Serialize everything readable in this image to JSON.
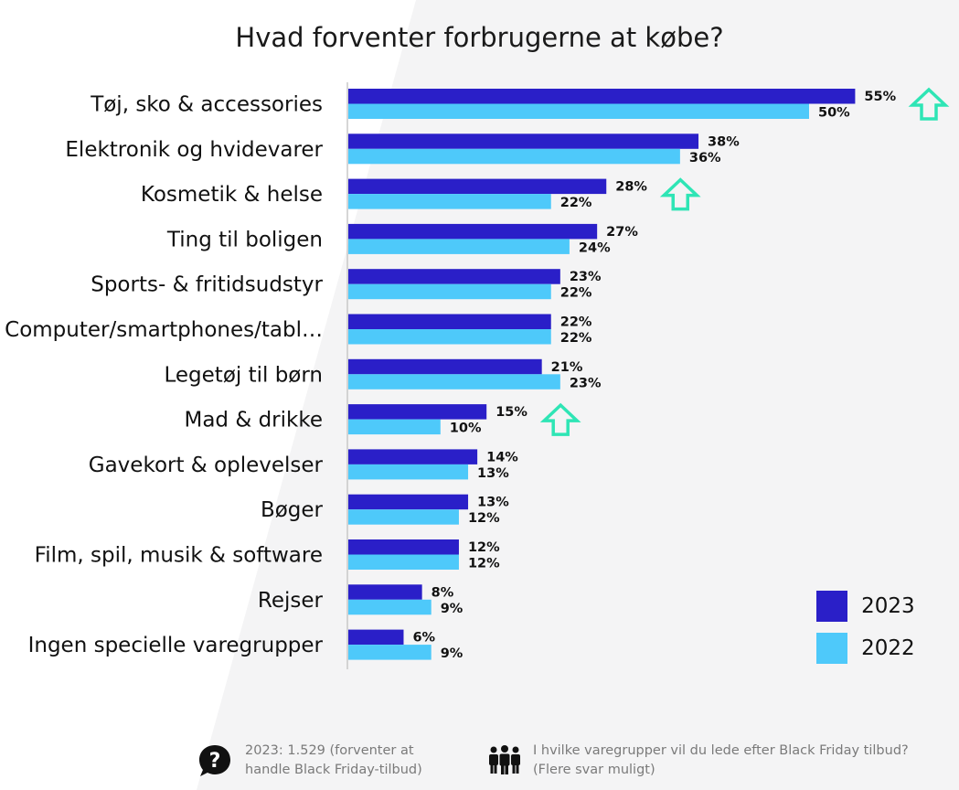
{
  "chart_data": {
    "type": "bar",
    "orientation": "horizontal",
    "title": "Hvad forventer forbrugerne at købe?",
    "categories": [
      "Tøj, sko & accessories",
      "Elektronik og hvidevarer",
      "Kosmetik & helse",
      "Ting til boligen",
      "Sports- & fritidsudstyr",
      "Computer/smartphones/tabl…",
      "Legetøj til børn",
      "Mad & drikke",
      "Gavekort & oplevelser",
      "Bøger",
      "Film, spil, musik & software",
      "Rejser",
      "Ingen specielle varegrupper"
    ],
    "series": [
      {
        "name": "2023",
        "color": "#2A1FC8",
        "values": [
          55,
          38,
          28,
          27,
          23,
          22,
          21,
          15,
          14,
          13,
          12,
          8,
          6
        ],
        "labels": [
          "55%",
          "38%",
          "28%",
          "27%",
          "23%",
          "22%",
          "21%",
          "15%",
          "14%",
          "13%",
          "12%",
          "8%",
          "6%"
        ]
      },
      {
        "name": "2022",
        "color": "#4EC9FA",
        "values": [
          50,
          36,
          22,
          24,
          22,
          22,
          23,
          10,
          13,
          12,
          12,
          9,
          9
        ],
        "labels": [
          "50%",
          "36%",
          "22%",
          "24%",
          "22%",
          "22%",
          "23%",
          "10%",
          "13%",
          "12%",
          "12%",
          "9%",
          "9%"
        ]
      }
    ],
    "highlight_up_arrows": [
      0,
      2,
      7
    ],
    "arrow_color": "#2EE5B5",
    "legend_position": "bottom-right",
    "grid": false
  },
  "footer": {
    "base_text": "2023: 1.529 (forventer at handle Black Friday-tilbud)",
    "base_icon": "question-bubble-icon",
    "question_text": "I hvilke varegrupper vil du lede efter Black Friday tilbud? (Flere svar muligt)",
    "question_icon": "people-group-icon"
  }
}
